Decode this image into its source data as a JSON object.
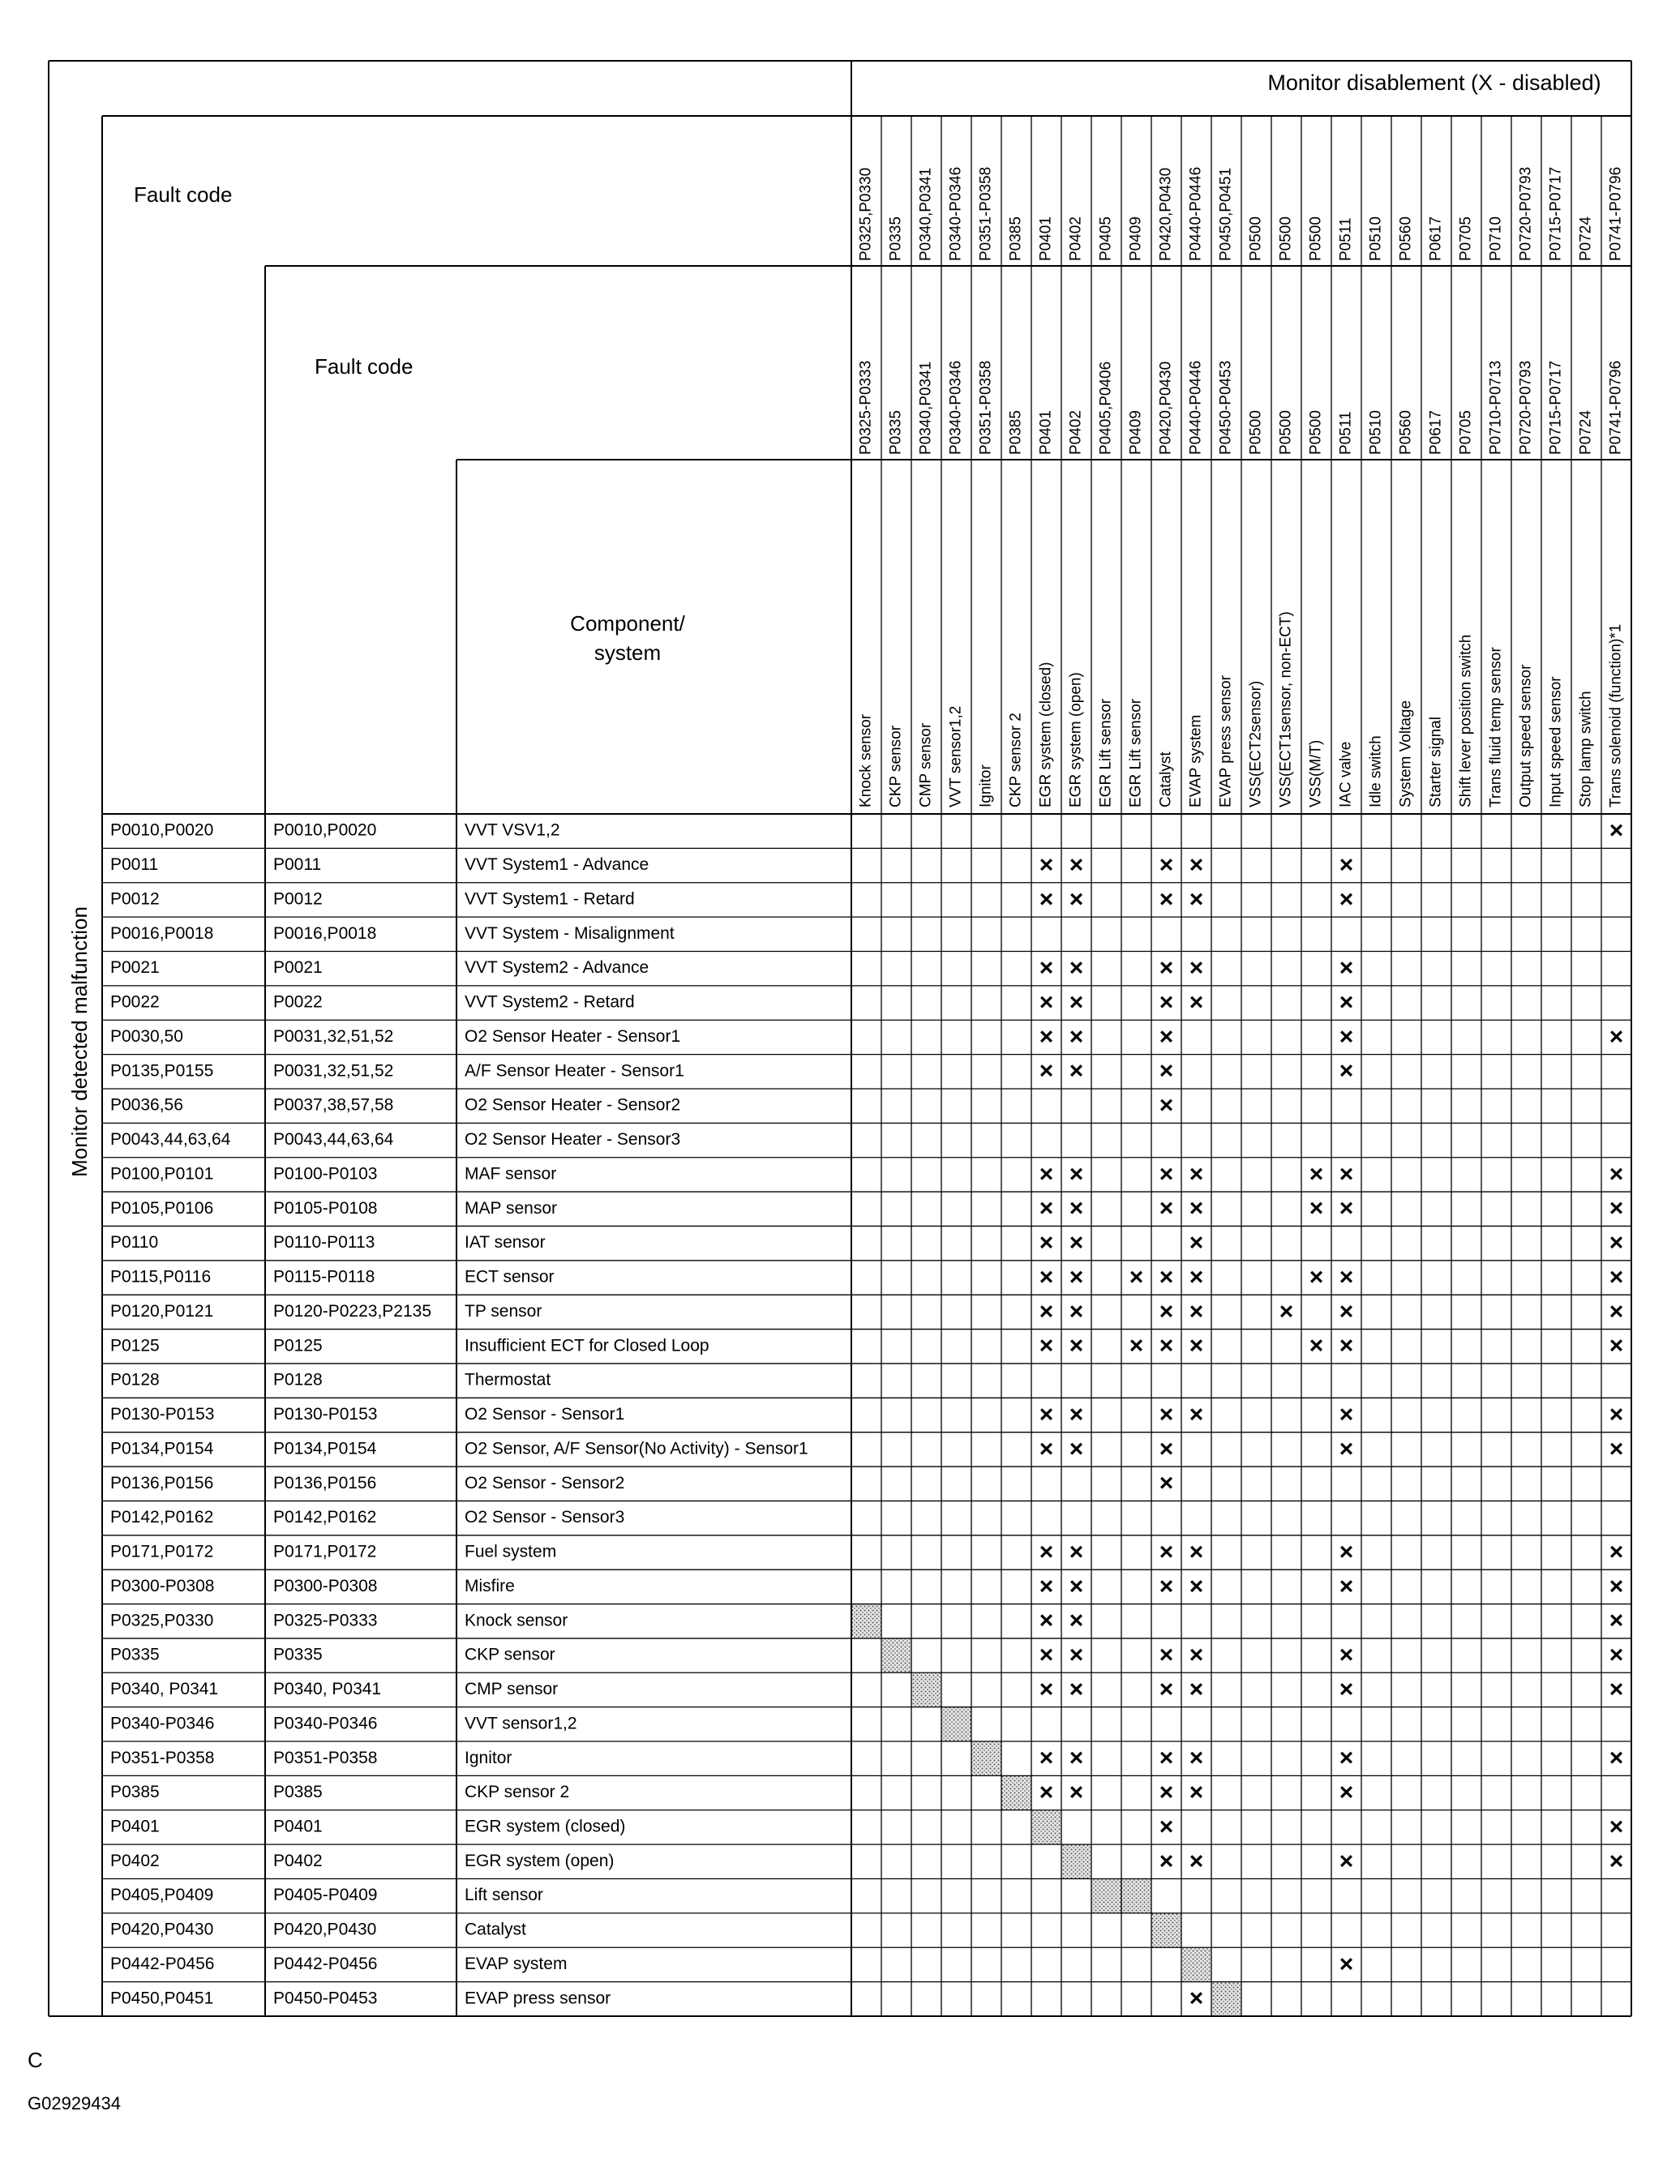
{
  "header": {
    "title": "Monitor disablement (X - disabled)",
    "side_label": "Monitor detected malfunction",
    "fault_code_1": "Fault code",
    "fault_code_2": "Fault code",
    "component": [
      "Component/",
      "system"
    ]
  },
  "columns": [
    {
      "code": "P0325,P0330",
      "code_range": "P0325-P0333",
      "name": "Knock sensor"
    },
    {
      "code": "P0335",
      "code_range": "P0335",
      "name": "CKP sensor"
    },
    {
      "code": "P0340,P0341",
      "code_range": "P0340,P0341",
      "name": "CMP sensor"
    },
    {
      "code": "P0340-P0346",
      "code_range": "P0340-P0346",
      "name": "VVT sensor1,2"
    },
    {
      "code": "P0351-P0358",
      "code_range": "P0351-P0358",
      "name": "Ignitor"
    },
    {
      "code": "P0385",
      "code_range": "P0385",
      "name": "CKP sensor 2"
    },
    {
      "code": "P0401",
      "code_range": "P0401",
      "name": "EGR system (closed)"
    },
    {
      "code": "P0402",
      "code_range": "P0402",
      "name": "EGR system (open)"
    },
    {
      "code": "P0405",
      "code_range": "P0405,P0406",
      "name": "EGR Lift sensor"
    },
    {
      "code": "P0409",
      "code_range": "P0409",
      "name": "EGR Lift sensor"
    },
    {
      "code": "P0420,P0430",
      "code_range": "P0420,P0430",
      "name": "Catalyst"
    },
    {
      "code": "P0440-P0446",
      "code_range": "P0440-P0446",
      "name": "EVAP system"
    },
    {
      "code": "P0450,P0451",
      "code_range": "P0450-P0453",
      "name": "EVAP press sensor"
    },
    {
      "code": "P0500",
      "code_range": "P0500",
      "name": "VSS(ECT2sensor)"
    },
    {
      "code": "P0500",
      "code_range": "P0500",
      "name": "VSS(ECT1sensor, non-ECT)"
    },
    {
      "code": "P0500",
      "code_range": "P0500",
      "name": "VSS(M/T)"
    },
    {
      "code": "P0511",
      "code_range": "P0511",
      "name": "IAC valve"
    },
    {
      "code": "P0510",
      "code_range": "P0510",
      "name": "Idle switch"
    },
    {
      "code": "P0560",
      "code_range": "P0560",
      "name": "System Voltage"
    },
    {
      "code": "P0617",
      "code_range": "P0617",
      "name": "Starter signal"
    },
    {
      "code": "P0705",
      "code_range": "P0705",
      "name": "Shift lever position switch"
    },
    {
      "code": "P0710",
      "code_range": "P0710-P0713",
      "name": "Trans fluid temp sensor"
    },
    {
      "code": "P0720-P0793",
      "code_range": "P0720-P0793",
      "name": "Output speed sensor"
    },
    {
      "code": "P0715-P0717",
      "code_range": "P0715-P0717",
      "name": "Input speed sensor"
    },
    {
      "code": "P0724",
      "code_range": "P0724",
      "name": "Stop lamp switch"
    },
    {
      "code": "P0741-P0796",
      "code_range": "P0741-P0796",
      "name": "Trans solenoid (function)*1"
    }
  ],
  "rows": [
    {
      "fault_code": "P0010,P0020",
      "fault_code_2": "P0010,P0020",
      "component": "VVT VSV1,2",
      "cells": {
        "25": "×"
      },
      "shaded": []
    },
    {
      "fault_code": "P0011",
      "fault_code_2": "P0011",
      "component": "VVT System1 - Advance",
      "cells": {
        "6": "×",
        "7": "×",
        "10": "×",
        "11": "×",
        "16": "×"
      },
      "shaded": []
    },
    {
      "fault_code": "P0012",
      "fault_code_2": "P0012",
      "component": "VVT System1 - Retard",
      "cells": {
        "6": "×",
        "7": "×",
        "10": "×",
        "11": "×",
        "16": "×"
      },
      "shaded": []
    },
    {
      "fault_code": "P0016,P0018",
      "fault_code_2": "P0016,P0018",
      "component": "VVT System - Misalignment",
      "cells": {},
      "shaded": []
    },
    {
      "fault_code": "P0021",
      "fault_code_2": "P0021",
      "component": "VVT System2 - Advance",
      "cells": {
        "6": "×",
        "7": "×",
        "10": "×",
        "11": "×",
        "16": "×"
      },
      "shaded": []
    },
    {
      "fault_code": "P0022",
      "fault_code_2": "P0022",
      "component": "VVT System2 - Retard",
      "cells": {
        "6": "×",
        "7": "×",
        "10": "×",
        "11": "×",
        "16": "×"
      },
      "shaded": []
    },
    {
      "fault_code": "P0030,50",
      "fault_code_2": "P0031,32,51,52",
      "component": "O2 Sensor Heater - Sensor1",
      "cells": {
        "6": "×",
        "7": "×",
        "10": "×",
        "16": "×",
        "25": "×"
      },
      "shaded": []
    },
    {
      "fault_code": "P0135,P0155",
      "fault_code_2": "P0031,32,51,52",
      "component": "A/F Sensor Heater  - Sensor1",
      "cells": {
        "6": "×",
        "7": "×",
        "10": "×",
        "16": "×"
      },
      "shaded": []
    },
    {
      "fault_code": "P0036,56",
      "fault_code_2": "P0037,38,57,58",
      "component": "O2 Sensor Heater - Sensor2",
      "cells": {
        "10": "×"
      },
      "shaded": []
    },
    {
      "fault_code": "P0043,44,63,64",
      "fault_code_2": "P0043,44,63,64",
      "component": "O2 Sensor Heater - Sensor3",
      "cells": {},
      "shaded": []
    },
    {
      "fault_code": "P0100,P0101",
      "fault_code_2": "P0100-P0103",
      "component": "MAF sensor",
      "cells": {
        "6": "×",
        "7": "×",
        "10": "×",
        "11": "×",
        "15": "×",
        "16": "×",
        "25": "×"
      },
      "shaded": []
    },
    {
      "fault_code": "P0105,P0106",
      "fault_code_2": "P0105-P0108",
      "component": "MAP sensor",
      "cells": {
        "6": "×",
        "7": "×",
        "10": "×",
        "11": "×",
        "15": "×",
        "16": "×",
        "25": "×"
      },
      "shaded": []
    },
    {
      "fault_code": "P0110",
      "fault_code_2": "P0110-P0113",
      "component": "IAT sensor",
      "cells": {
        "6": "×",
        "7": "×",
        "11": "×",
        "25": "×"
      },
      "shaded": []
    },
    {
      "fault_code": "P0115,P0116",
      "fault_code_2": "P0115-P0118",
      "component": "ECT sensor",
      "cells": {
        "6": "×",
        "7": "×",
        "9": "×",
        "10": "×",
        "11": "×",
        "15": "×",
        "16": "×",
        "25": "×"
      },
      "shaded": []
    },
    {
      "fault_code": "P0120,P0121",
      "fault_code_2": "P0120-P0223,P2135",
      "component": "TP sensor",
      "cells": {
        "6": "×",
        "7": "×",
        "10": "×",
        "11": "×",
        "14": "×",
        "16": "×",
        "25": "×"
      },
      "shaded": []
    },
    {
      "fault_code": "P0125",
      "fault_code_2": "P0125",
      "component": "Insufficient ECT for Closed Loop",
      "cells": {
        "6": "×",
        "7": "×",
        "9": "×",
        "10": "×",
        "11": "×",
        "15": "×",
        "16": "×",
        "25": "×"
      },
      "shaded": []
    },
    {
      "fault_code": "P0128",
      "fault_code_2": "P0128",
      "component": "Thermostat",
      "cells": {},
      "shaded": []
    },
    {
      "fault_code": "P0130-P0153",
      "fault_code_2": "P0130-P0153",
      "component": "O2 Sensor - Sensor1",
      "cells": {
        "6": "×",
        "7": "×",
        "10": "×",
        "11": "×",
        "16": "×",
        "25": "×"
      },
      "shaded": []
    },
    {
      "fault_code": "P0134,P0154",
      "fault_code_2": "P0134,P0154",
      "component": "O2 Sensor, A/F Sensor(No Activity) - Sensor1",
      "cells": {
        "6": "×",
        "7": "×",
        "10": "×",
        "16": "×",
        "25": "×"
      },
      "shaded": []
    },
    {
      "fault_code": "P0136,P0156",
      "fault_code_2": "P0136,P0156",
      "component": "O2 Sensor - Sensor2",
      "cells": {
        "10": "×"
      },
      "shaded": []
    },
    {
      "fault_code": "P0142,P0162",
      "fault_code_2": "P0142,P0162",
      "component": "O2 Sensor - Sensor3",
      "cells": {},
      "shaded": []
    },
    {
      "fault_code": "P0171,P0172",
      "fault_code_2": "P0171,P0172",
      "component": "Fuel system",
      "cells": {
        "6": "×",
        "7": "×",
        "10": "×",
        "11": "×",
        "16": "×",
        "25": "×"
      },
      "shaded": []
    },
    {
      "fault_code": "P0300-P0308",
      "fault_code_2": "P0300-P0308",
      "component": "Misfire",
      "cells": {
        "6": "×",
        "7": "×",
        "10": "×",
        "11": "×",
        "16": "×",
        "25": "×"
      },
      "shaded": []
    },
    {
      "fault_code": "P0325,P0330",
      "fault_code_2": "P0325-P0333",
      "component": "Knock sensor",
      "cells": {
        "6": "×",
        "7": "×",
        "25": "×"
      },
      "shaded": [
        0
      ]
    },
    {
      "fault_code": "P0335",
      "fault_code_2": "P0335",
      "component": "CKP sensor",
      "cells": {
        "6": "×",
        "7": "×",
        "10": "×",
        "11": "×",
        "16": "×",
        "25": "×"
      },
      "shaded": [
        1
      ]
    },
    {
      "fault_code": "P0340, P0341",
      "fault_code_2": "P0340, P0341",
      "component": "CMP sensor",
      "cells": {
        "6": "×",
        "7": "×",
        "10": "×",
        "11": "×",
        "16": "×",
        "25": "×"
      },
      "shaded": [
        2
      ]
    },
    {
      "fault_code": "P0340-P0346",
      "fault_code_2": "P0340-P0346",
      "component": "VVT sensor1,2",
      "cells": {},
      "shaded": [
        3
      ]
    },
    {
      "fault_code": "P0351-P0358",
      "fault_code_2": "P0351-P0358",
      "component": "Ignitor",
      "cells": {
        "6": "×",
        "7": "×",
        "10": "×",
        "11": "×",
        "16": "×",
        "25": "×"
      },
      "shaded": [
        4
      ]
    },
    {
      "fault_code": "P0385",
      "fault_code_2": "P0385",
      "component": "CKP sensor 2",
      "cells": {
        "6": "×",
        "7": "×",
        "10": "×",
        "11": "×",
        "16": "×"
      },
      "shaded": [
        5
      ]
    },
    {
      "fault_code": "P0401",
      "fault_code_2": "P0401",
      "component": "EGR system (closed)",
      "cells": {
        "10": "×",
        "25": "×"
      },
      "shaded": [
        6
      ]
    },
    {
      "fault_code": "P0402",
      "fault_code_2": "P0402",
      "component": "EGR system (open)",
      "cells": {
        "10": "×",
        "11": "×",
        "16": "×",
        "25": "×"
      },
      "shaded": [
        7
      ]
    },
    {
      "fault_code": "P0405,P0409",
      "fault_code_2": "P0405-P0409",
      "component": "Lift sensor",
      "cells": {},
      "shaded": [
        8,
        9
      ]
    },
    {
      "fault_code": "P0420,P0430",
      "fault_code_2": "P0420,P0430",
      "component": "Catalyst",
      "cells": {},
      "shaded": [
        10
      ]
    },
    {
      "fault_code": "P0442-P0456",
      "fault_code_2": "P0442-P0456",
      "component": "EVAP system",
      "cells": {
        "16": "×"
      },
      "shaded": [
        11
      ]
    },
    {
      "fault_code": "P0450,P0451",
      "fault_code_2": "P0450-P0453",
      "component": "EVAP press sensor",
      "cells": {
        "11": "×"
      },
      "shaded": [
        12
      ]
    }
  ],
  "footer": {
    "letter": "C",
    "figure_id": "G02929434"
  }
}
